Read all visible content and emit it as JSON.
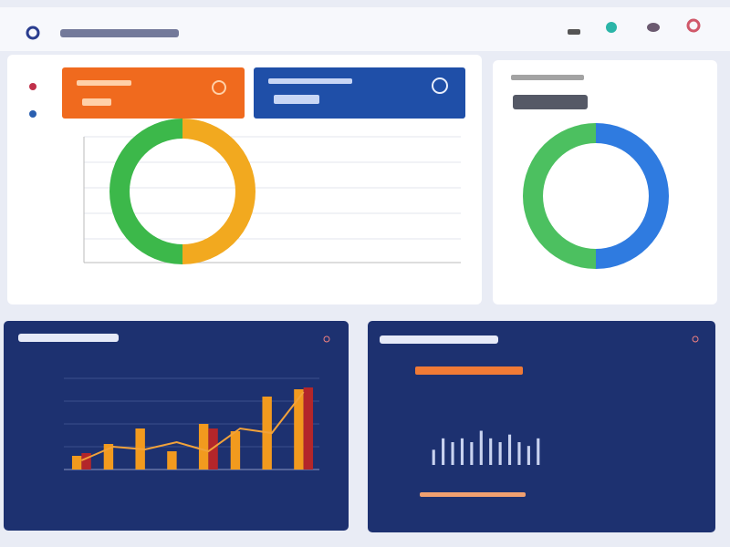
{
  "chart_data": [
    {
      "type": "pie",
      "values": [
        50,
        50
      ],
      "colors": [
        "#f2a91f",
        "#3cb84a"
      ]
    },
    {
      "type": "pie",
      "values": [
        50,
        50
      ],
      "colors": [
        "#2f7be0",
        "#4cc060"
      ]
    },
    {
      "type": "bar",
      "categories": [
        null,
        null,
        null,
        null,
        null,
        null,
        null,
        null
      ],
      "ylim": [
        0,
        100
      ],
      "series": [
        {
          "color": "#f29a1e",
          "values": [
            15,
            28,
            45,
            20,
            50,
            42,
            80,
            88
          ]
        },
        {
          "color": "#b3262a",
          "values": [
            18,
            null,
            null,
            null,
            45,
            null,
            null,
            90
          ]
        },
        {
          "color": "#f2a23a",
          "kind": "line",
          "values": [
            10,
            25,
            22,
            30,
            20,
            45,
            40,
            85
          ]
        }
      ]
    },
    {
      "type": "bar",
      "categories": [
        null,
        null,
        null,
        null,
        null,
        null,
        null,
        null,
        null,
        null,
        null,
        null
      ],
      "ylim": [
        0,
        60
      ],
      "color": "#c9d3f0",
      "values": [
        20,
        35,
        30,
        35,
        30,
        45,
        35,
        30,
        40,
        30,
        25,
        35
      ]
    }
  ]
}
